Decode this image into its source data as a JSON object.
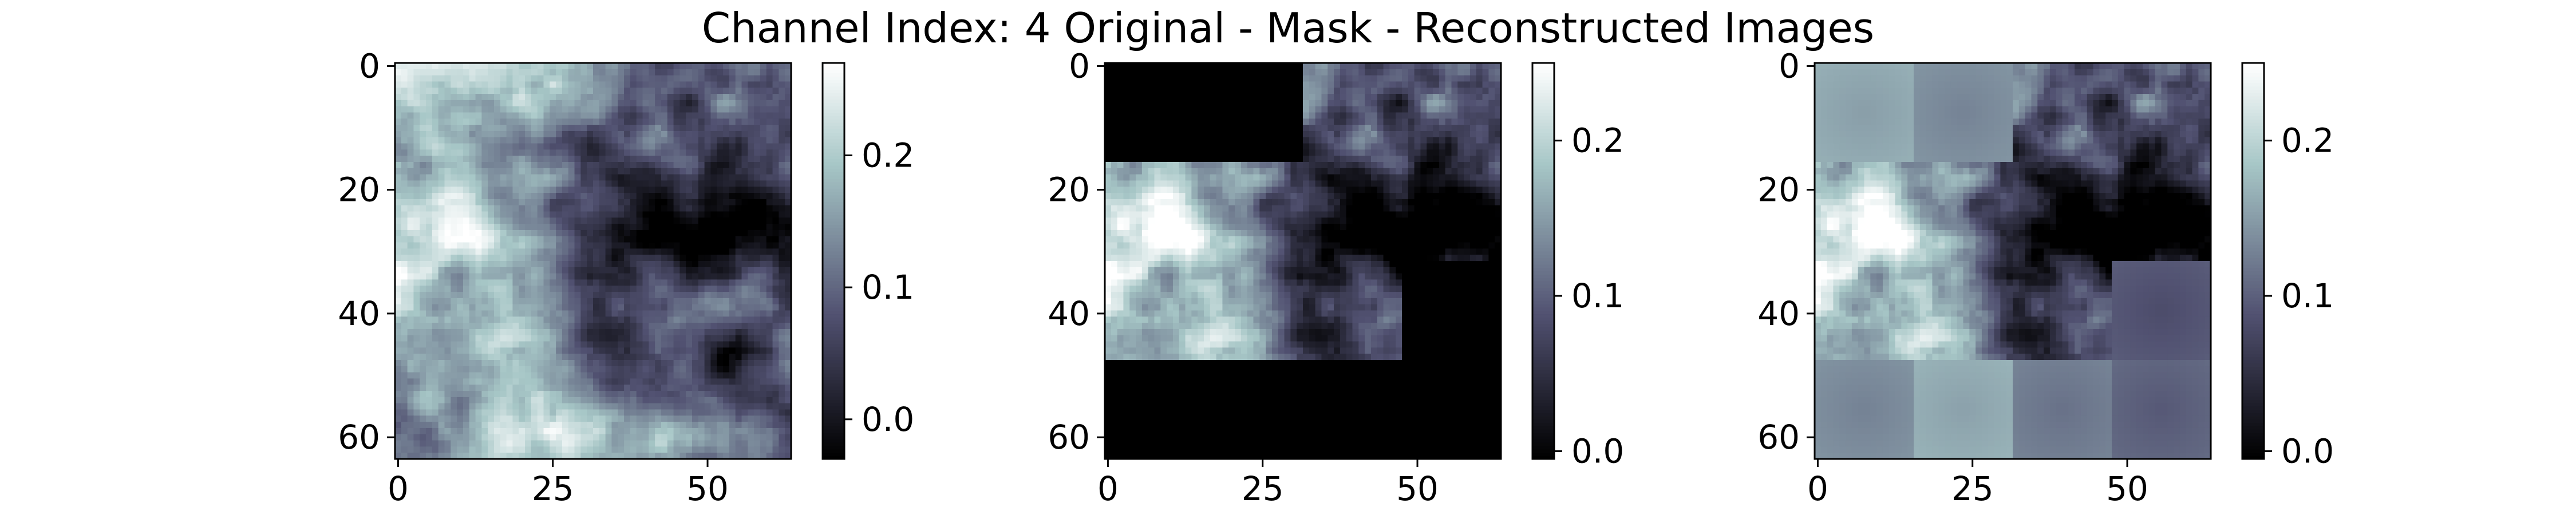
{
  "figure": {
    "title": "Channel Index: 4 Original - Mask - Reconstructed Images"
  },
  "chart_data": [
    {
      "type": "heatmap",
      "panel": "original",
      "colormap": "bone",
      "grid_size": [
        64,
        64
      ],
      "x_ticks": [
        0,
        25,
        50
      ],
      "y_ticks": [
        0,
        20,
        40,
        60
      ],
      "xlim": [
        0,
        63
      ],
      "ylim": [
        63,
        0
      ],
      "colorbar": {
        "range": [
          -0.03,
          0.27
        ],
        "ticks": [
          0.0,
          0.1,
          0.2
        ],
        "tick_labels": [
          "0.0",
          "0.1",
          "0.2"
        ]
      },
      "masked_blocks": [],
      "blurred_blocks": []
    },
    {
      "type": "heatmap",
      "panel": "mask",
      "colormap": "bone",
      "grid_size": [
        64,
        64
      ],
      "x_ticks": [
        0,
        25,
        50
      ],
      "y_ticks": [
        0,
        20,
        40,
        60
      ],
      "xlim": [
        0,
        63
      ],
      "ylim": [
        63,
        0
      ],
      "colorbar": {
        "range": [
          -0.005,
          0.25
        ],
        "ticks": [
          0.0,
          0.1,
          0.2
        ],
        "tick_labels": [
          "0.0",
          "0.1",
          "0.2"
        ]
      },
      "masked_blocks": [
        [
          0,
          0
        ],
        [
          0,
          1
        ],
        [
          2,
          3
        ],
        [
          3,
          0
        ],
        [
          3,
          1
        ],
        [
          3,
          2
        ],
        [
          3,
          3
        ]
      ],
      "blurred_blocks": []
    },
    {
      "type": "heatmap",
      "panel": "reconstructed",
      "colormap": "bone",
      "grid_size": [
        64,
        64
      ],
      "x_ticks": [
        0,
        25,
        50
      ],
      "y_ticks": [
        0,
        20,
        40,
        60
      ],
      "xlim": [
        0,
        63
      ],
      "ylim": [
        63,
        0
      ],
      "colorbar": {
        "range": [
          -0.005,
          0.25
        ],
        "ticks": [
          0.0,
          0.1,
          0.2
        ],
        "tick_labels": [
          "0.0",
          "0.1",
          "0.2"
        ]
      },
      "masked_blocks": [],
      "blurred_blocks": [
        [
          0,
          0
        ],
        [
          0,
          1
        ],
        [
          2,
          3
        ],
        [
          3,
          0
        ],
        [
          3,
          1
        ],
        [
          3,
          2
        ],
        [
          3,
          3
        ]
      ]
    }
  ]
}
